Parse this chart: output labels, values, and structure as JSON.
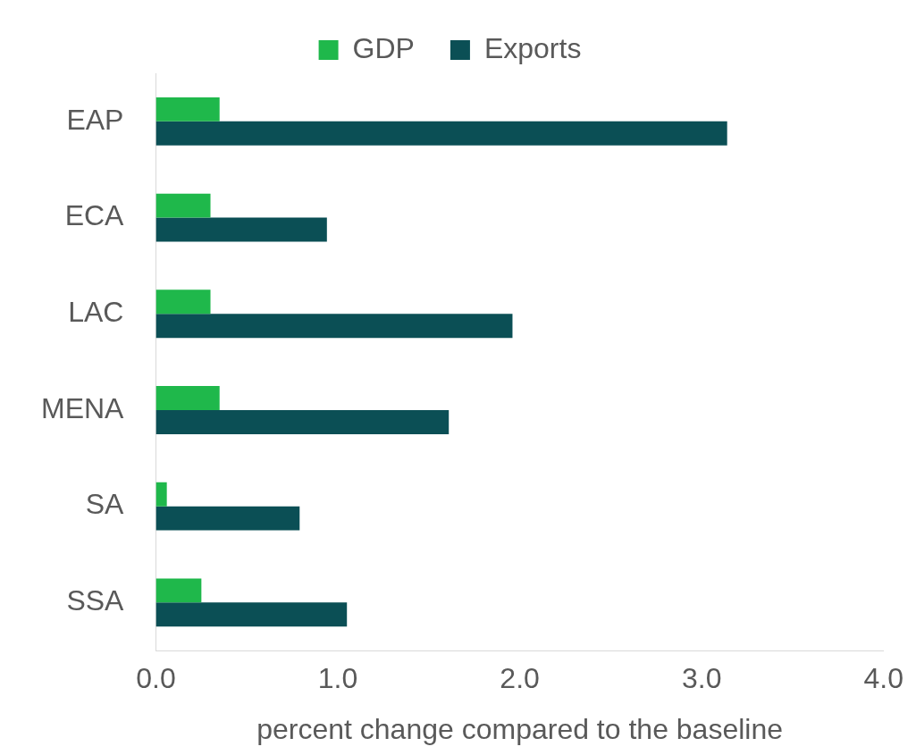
{
  "chart_data": {
    "type": "bar",
    "orientation": "horizontal",
    "xlabel": "percent change compared to the baseline",
    "categories": [
      "EAP",
      "ECA",
      "LAC",
      "MENA",
      "SA",
      "SSA"
    ],
    "series": [
      {
        "name": "GDP",
        "color": "#1fb84b",
        "values": [
          0.35,
          0.3,
          0.3,
          0.35,
          0.06,
          0.25
        ]
      },
      {
        "name": "Exports",
        "color": "#0b4f55",
        "values": [
          3.14,
          0.94,
          1.96,
          1.61,
          0.79,
          1.05
        ]
      }
    ],
    "xlim": [
      0,
      4
    ],
    "xticks": [
      {
        "value": 0,
        "label": "0.0"
      },
      {
        "value": 1,
        "label": "1.0"
      },
      {
        "value": 2,
        "label": "2.0"
      },
      {
        "value": 3,
        "label": "3.0"
      },
      {
        "value": 4,
        "label": "4.0"
      }
    ],
    "grid": false,
    "legend": "top"
  }
}
